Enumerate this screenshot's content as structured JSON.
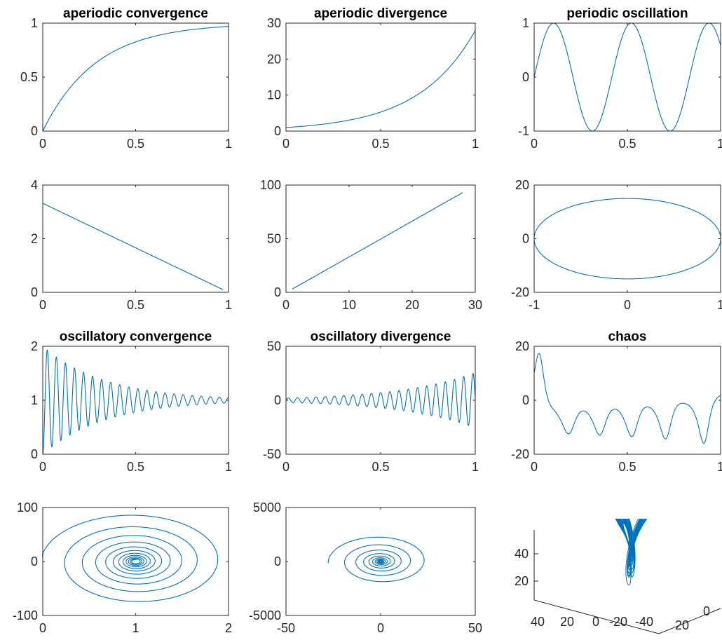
{
  "colors": {
    "line": "#0072BD",
    "axes": "#262626",
    "background": "#FFFFFF"
  },
  "chart_data": [
    {
      "type": "line",
      "title": "aperiodic convergence",
      "xlim": [
        0,
        1
      ],
      "ylim": [
        0,
        1
      ],
      "xticks": [
        0,
        0.5,
        1
      ],
      "xticklabels": [
        "0",
        "0.5",
        "1"
      ],
      "yticks": [
        0,
        0.5,
        1
      ],
      "yticklabels": [
        "0",
        "0.5",
        "1"
      ],
      "series": [
        {
          "function": "1 - exp(-3.5*t)"
        }
      ]
    },
    {
      "type": "line",
      "title": "aperiodic divergence",
      "xlim": [
        0,
        1
      ],
      "ylim": [
        0,
        30
      ],
      "xticks": [
        0,
        0.5,
        1
      ],
      "xticklabels": [
        "0",
        "0.5",
        "1"
      ],
      "yticks": [
        0,
        10,
        20,
        30
      ],
      "yticklabels": [
        "0",
        "10",
        "20",
        "30"
      ],
      "series": [
        {
          "function": "exp(3.33*t)"
        }
      ]
    },
    {
      "type": "line",
      "title": "periodic oscillation",
      "xlim": [
        0,
        1
      ],
      "ylim": [
        -1,
        1
      ],
      "xticks": [
        0,
        0.5,
        1
      ],
      "xticklabels": [
        "0",
        "0.5",
        "1"
      ],
      "yticks": [
        -1,
        0,
        1
      ],
      "yticklabels": [
        "-1",
        "0",
        "1"
      ],
      "series": [
        {
          "function": "sin(2*pi*2.4*t)"
        }
      ]
    },
    {
      "type": "line",
      "title": "",
      "xlim": [
        0,
        1
      ],
      "ylim": [
        0,
        4
      ],
      "xticks": [
        0,
        0.5,
        1
      ],
      "xticklabels": [
        "0",
        "0.5",
        "1"
      ],
      "yticks": [
        0,
        2,
        4
      ],
      "yticklabels": [
        "0",
        "2",
        "4"
      ],
      "series": [
        {
          "x": [
            0,
            0.97
          ],
          "y": [
            3.32,
            0.1
          ]
        }
      ]
    },
    {
      "type": "line",
      "title": "",
      "xlim": [
        0,
        30
      ],
      "ylim": [
        0,
        100
      ],
      "xticks": [
        0,
        10,
        20,
        30
      ],
      "xticklabels": [
        "0",
        "10",
        "20",
        "30"
      ],
      "yticks": [
        0,
        50,
        100
      ],
      "yticklabels": [
        "0",
        "50",
        "100"
      ],
      "series": [
        {
          "x": [
            1,
            28
          ],
          "y": [
            3,
            93
          ]
        }
      ]
    },
    {
      "type": "line",
      "title": "",
      "xlim": [
        -1,
        1
      ],
      "ylim": [
        -20,
        20
      ],
      "xticks": [
        -1,
        0,
        1
      ],
      "xticklabels": [
        "-1",
        "0",
        "1"
      ],
      "yticks": [
        -20,
        0,
        20
      ],
      "yticklabels": [
        "-20",
        "0",
        "20"
      ],
      "series": [
        {
          "parametric": "x = cos(s), y = 15*sin(s)"
        }
      ]
    },
    {
      "type": "line",
      "title": "oscillatory convergence",
      "xlim": [
        0,
        1
      ],
      "ylim": [
        0,
        2
      ],
      "xticks": [
        0,
        0.5,
        1
      ],
      "xticklabels": [
        "0",
        "0.5",
        "1"
      ],
      "yticks": [
        0,
        1,
        2
      ],
      "yticklabels": [
        "0",
        "1",
        "2"
      ],
      "series": [
        {
          "function": "1 - exp(-3*t)*cos(2*pi*20.5*t)"
        }
      ]
    },
    {
      "type": "line",
      "title": "oscillatory divergence",
      "xlim": [
        0,
        1
      ],
      "ylim": [
        -50,
        50
      ],
      "xticks": [
        0,
        0.5,
        1
      ],
      "xticklabels": [
        "0",
        "0.5",
        "1"
      ],
      "yticks": [
        -50,
        0,
        50
      ],
      "yticklabels": [
        "-50",
        "0",
        "50"
      ],
      "series": [
        {
          "function": "2*exp(2.55*t)*sin(2*pi*20.5*t)"
        }
      ]
    },
    {
      "type": "line",
      "title": "chaos",
      "xlim": [
        0,
        1
      ],
      "ylim": [
        -20,
        20
      ],
      "xticks": [
        0,
        0.5,
        1
      ],
      "xticklabels": [
        "0",
        "0.5",
        "1"
      ],
      "yticks": [
        -20,
        0,
        20
      ],
      "yticklabels": [
        "-20",
        "0",
        "20"
      ],
      "series": [
        {
          "system": "Lorenz x(t), sigma=10, rho=28, beta=8/3"
        }
      ]
    },
    {
      "type": "line",
      "title": "",
      "xlim": [
        0,
        2
      ],
      "ylim": [
        -100,
        100
      ],
      "xticks": [
        0,
        1,
        2
      ],
      "xticklabels": [
        "0",
        "1",
        "2"
      ],
      "yticks": [
        -100,
        0,
        100
      ],
      "yticklabels": [
        "-100",
        "0",
        "100"
      ],
      "series": [
        {
          "phase_portrait": "converging spiral centered at (1, 0)"
        }
      ]
    },
    {
      "type": "line",
      "title": "",
      "xlim": [
        -50,
        50
      ],
      "ylim": [
        -5000,
        5000
      ],
      "xticks": [
        -50,
        0,
        50
      ],
      "xticklabels": [
        "-50",
        "0",
        "50"
      ],
      "yticks": [
        -5000,
        0,
        5000
      ],
      "yticklabels": [
        "-5000",
        "0",
        "5000"
      ],
      "series": [
        {
          "phase_portrait": "diverging spiral centered at (0, 0)"
        }
      ]
    },
    {
      "type": "line",
      "title": "",
      "view": "3d",
      "zticks": [
        20,
        40
      ],
      "zticklabels": [
        "20",
        "40"
      ],
      "xticklabels": [
        "40",
        "20",
        "0",
        "-20",
        "-40"
      ],
      "yticklabels": [
        "20",
        "0"
      ],
      "series": [
        {
          "system": "Lorenz attractor (x, y, z)"
        }
      ]
    }
  ]
}
